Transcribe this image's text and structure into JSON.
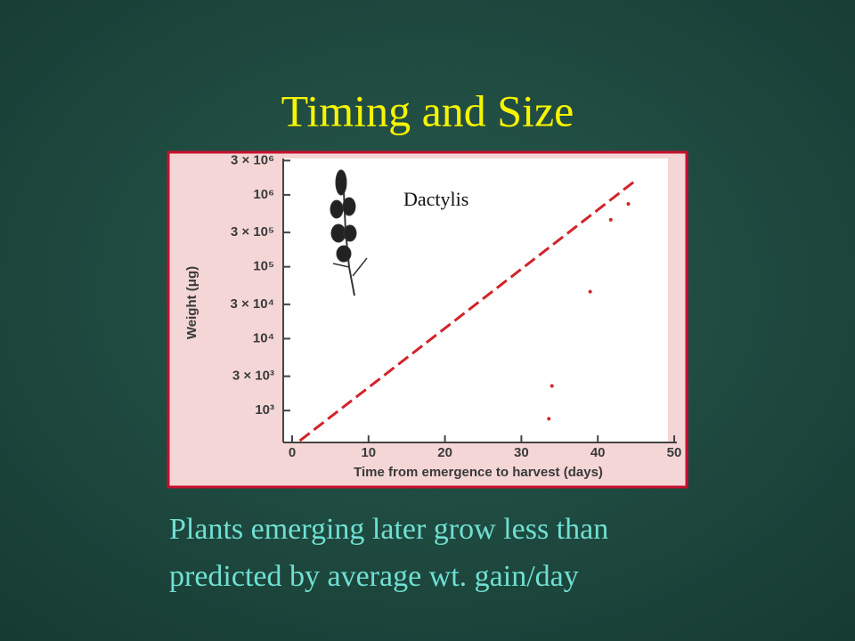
{
  "slide": {
    "title": "Timing and Size",
    "caption": [
      "Plants emerging later grow less than",
      "predicted by average wt. gain/day"
    ]
  },
  "chart_data": {
    "type": "line",
    "xlabel": "Time from emergence to harvest (days)",
    "ylabel": "Weight (μg)",
    "annotation": "Dactylis",
    "log_y": true,
    "xlim": [
      0,
      50
    ],
    "xticks": [
      0,
      10,
      20,
      30,
      40,
      50
    ],
    "ylim": [
      360,
      3700000
    ],
    "yticks": [
      {
        "value": 1000,
        "label": "10³"
      },
      {
        "value": 3000,
        "label": "3 × 10³"
      },
      {
        "value": 10000,
        "label": "10⁴"
      },
      {
        "value": 30000,
        "label": "3 × 10⁴"
      },
      {
        "value": 100000,
        "label": "10⁵"
      },
      {
        "value": 300000,
        "label": "3 × 10⁵"
      },
      {
        "value": 1000000,
        "label": "10⁶"
      },
      {
        "value": 3000000,
        "label": "3 × 10⁶"
      }
    ],
    "series": [
      {
        "color": "#d2232a",
        "style": "dashed",
        "x": [
          1,
          45
        ],
        "values": [
          380,
          1600000
        ]
      },
      {
        "color": "#d2232a",
        "style": "markers",
        "x": [
          33.6,
          34,
          39,
          41.7,
          44
        ],
        "values": [
          770,
          2200,
          45000,
          450000,
          750000
        ]
      }
    ]
  }
}
